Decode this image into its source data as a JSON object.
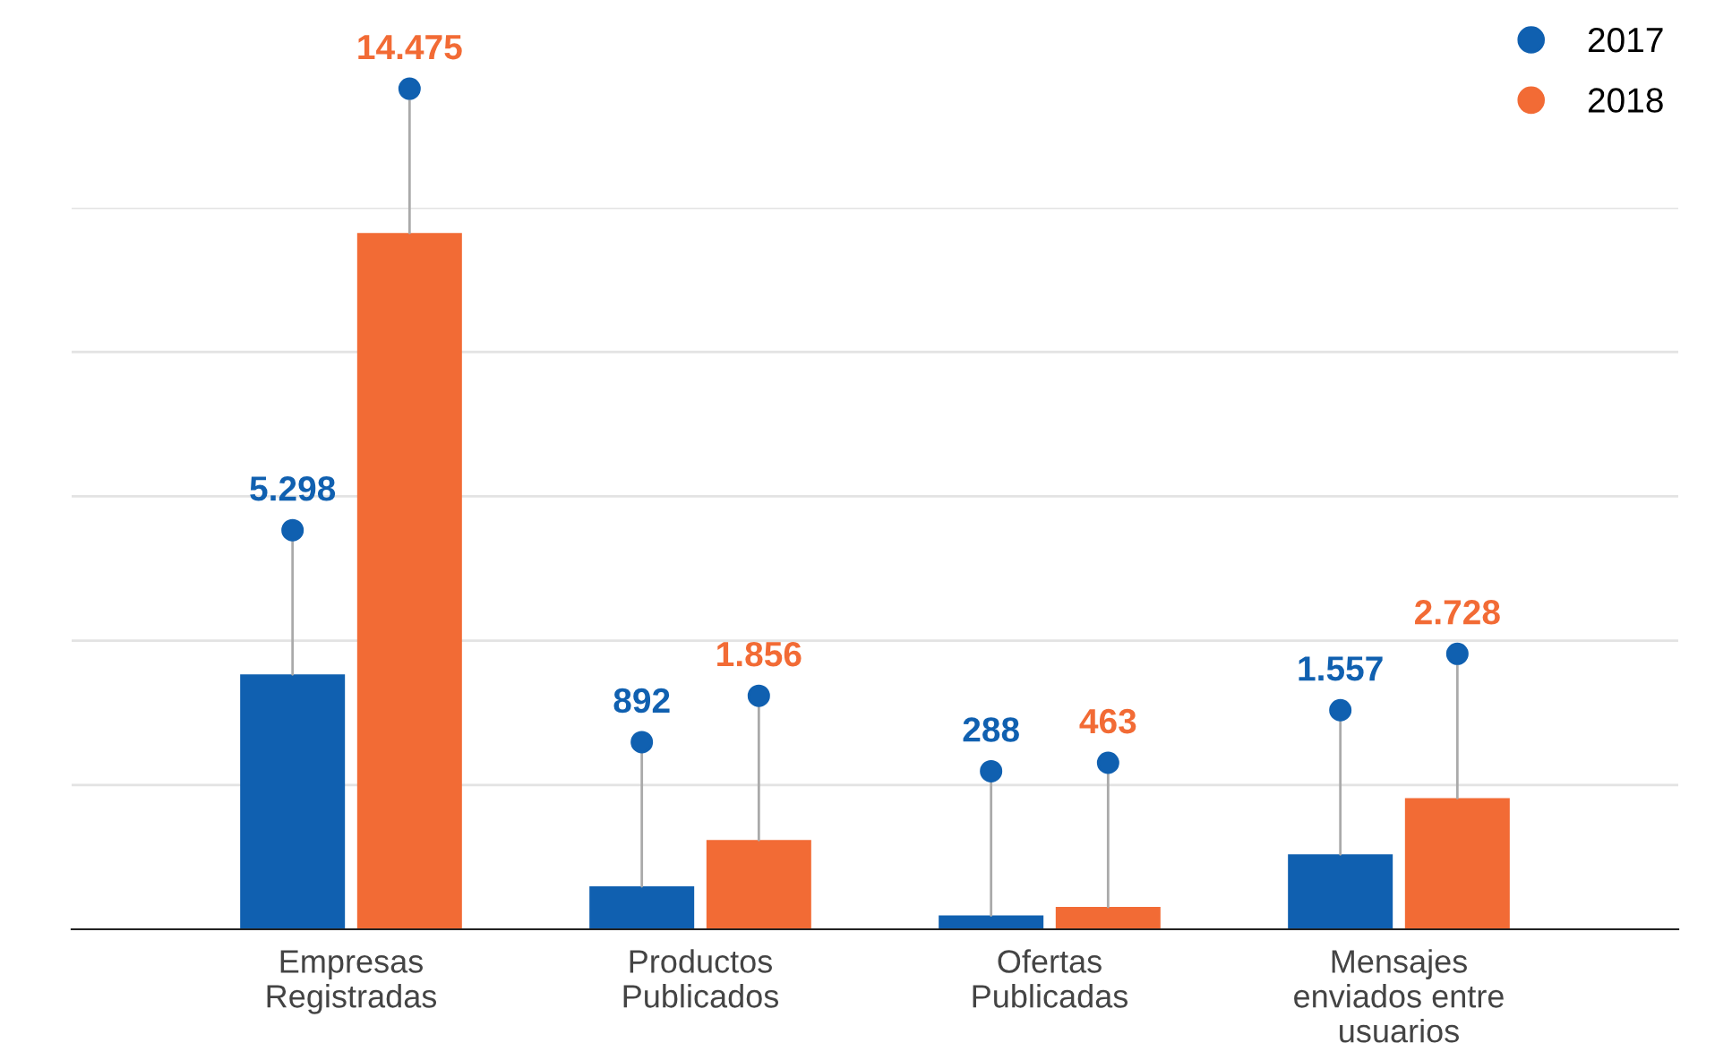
{
  "chart_data": {
    "type": "bar",
    "categories": [
      "Empresas\nRegistradas",
      "Productos\nPublicados",
      "Ofertas\nPublicadas",
      "Mensajes\nenviados entre\nusuarios"
    ],
    "series": [
      {
        "name": "2017",
        "color": "#1060b0",
        "values": [
          5298,
          892,
          288,
          1557
        ],
        "value_labels": [
          "5.298",
          "892",
          "288",
          "1.557"
        ]
      },
      {
        "name": "2018",
        "color": "#f26b35",
        "values": [
          14475,
          1856,
          463,
          2728
        ],
        "value_labels": [
          "14.475",
          "1.856",
          "463",
          "2.728"
        ]
      }
    ],
    "ylim": [
      0,
      15000
    ],
    "yticks": [
      {
        "value": 0,
        "label": null
      },
      {
        "value": 3000,
        "label": null
      },
      {
        "value": 6000,
        "label": null
      },
      {
        "value": 9000,
        "label": null
      },
      {
        "value": 12000,
        "label": null
      },
      {
        "value": 15000,
        "label": null
      }
    ],
    "tick_labels": "x",
    "grid": "y",
    "legend": "top right"
  }
}
